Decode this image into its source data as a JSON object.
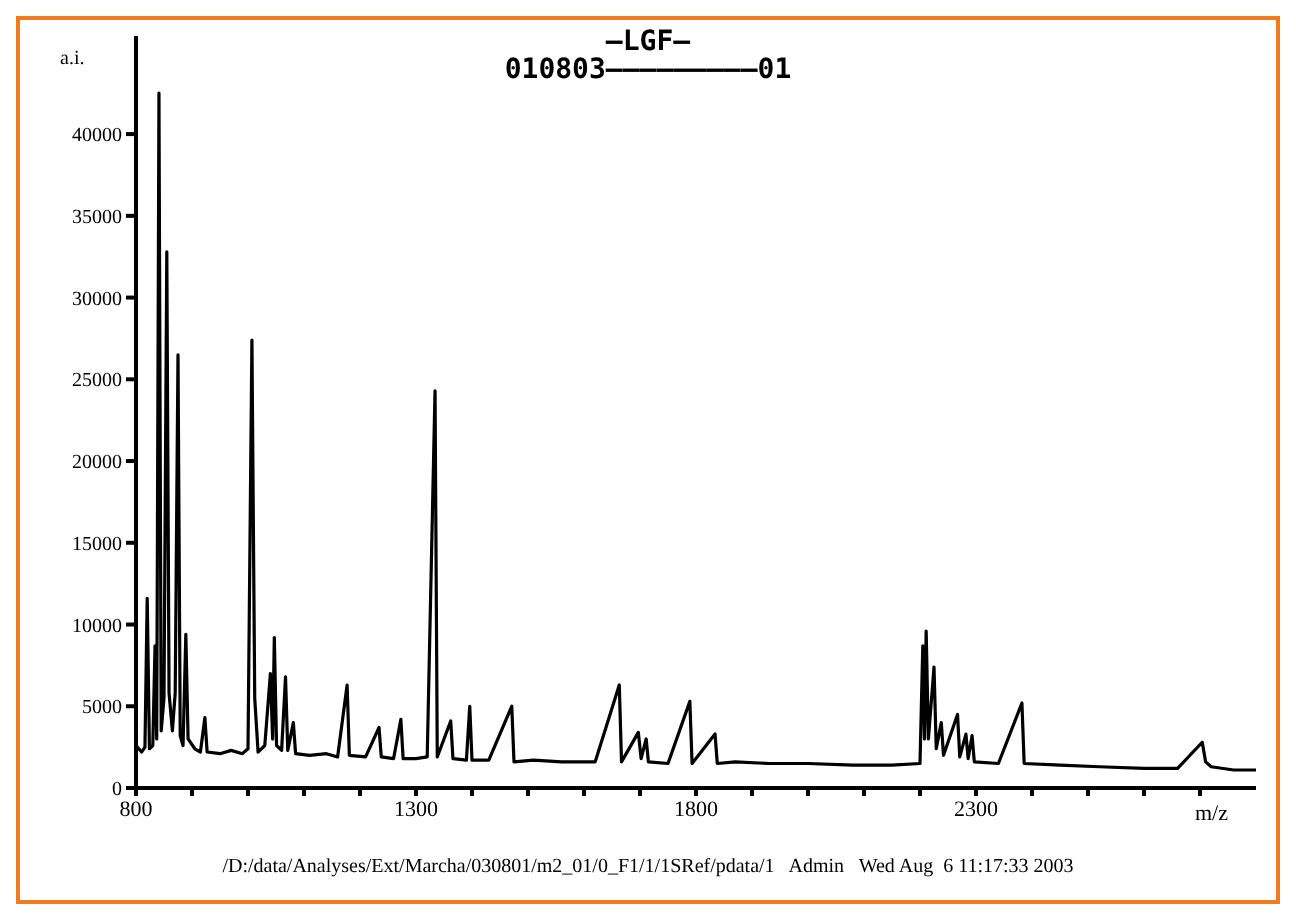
{
  "chart_data": {
    "type": "line",
    "title": "—LGF—",
    "subtitle": "010803—————————01",
    "xlabel": "m/z",
    "ylabel": "a.i.",
    "annotations": [
      "/D:/data/Analyses/Ext/Marcha/030801/m2_01/0_F1/1/1SRef/pdata/1   Admin   Wed Aug  6 11:17:33 2003"
    ],
    "xlim": [
      800,
      2800
    ],
    "xticks": [
      800,
      {
        "value": 900,
        "label": null
      },
      {
        "value": 1000,
        "label": null
      },
      {
        "value": 1100,
        "label": null
      },
      {
        "value": 1200,
        "label": null
      },
      1300,
      {
        "value": 1400,
        "label": null
      },
      {
        "value": 1500,
        "label": null
      },
      {
        "value": 1600,
        "label": null
      },
      {
        "value": 1700,
        "label": null
      },
      1800,
      {
        "value": 1900,
        "label": null
      },
      {
        "value": 2000,
        "label": null
      },
      {
        "value": 2100,
        "label": null
      },
      {
        "value": 2200,
        "label": null
      },
      2300,
      {
        "value": 2400,
        "label": null
      },
      {
        "value": 2500,
        "label": null
      },
      {
        "value": 2600,
        "label": null
      },
      {
        "value": 2700,
        "label": null
      }
    ],
    "ylim": [
      0,
      46000
    ],
    "yticks": [
      0,
      5000,
      10000,
      15000,
      20000,
      25000,
      30000,
      35000,
      40000
    ],
    "grid": false,
    "legend": false,
    "marker": "none",
    "line_style": "solid",
    "x": [
      800,
      810,
      816,
      820,
      824,
      830,
      834,
      837,
      841,
      845,
      850,
      855,
      859,
      865,
      870,
      875,
      879,
      884,
      889,
      893,
      905,
      915,
      923,
      927,
      950,
      970,
      990,
      1000,
      1007,
      1012,
      1018,
      1030,
      1040,
      1044,
      1047,
      1051,
      1060,
      1067,
      1071,
      1081,
      1085,
      1110,
      1140,
      1160,
      1177,
      1181,
      1210,
      1234,
      1238,
      1260,
      1273,
      1277,
      1300,
      1320,
      1334,
      1338,
      1362,
      1366,
      1390,
      1396,
      1400,
      1430,
      1471,
      1475,
      1510,
      1560,
      1620,
      1663,
      1667,
      1697,
      1702,
      1711,
      1715,
      1750,
      1789,
      1793,
      1834,
      1838,
      1870,
      1930,
      2000,
      2080,
      2150,
      2200,
      2205,
      2208,
      2211,
      2215,
      2225,
      2229,
      2238,
      2242,
      2267,
      2271,
      2282,
      2286,
      2293,
      2297,
      2340,
      2382,
      2386,
      2450,
      2520,
      2600,
      2660,
      2704,
      2710,
      2720,
      2760,
      2800
    ],
    "series": [
      {
        "color": "#000000",
        "values": [
          2600,
          2200,
          2500,
          11600,
          2400,
          2600,
          8700,
          3000,
          42500,
          3500,
          5500,
          32800,
          5800,
          3500,
          5800,
          26500,
          3200,
          2600,
          9400,
          3000,
          2400,
          2200,
          4300,
          2200,
          2100,
          2300,
          2100,
          2400,
          27400,
          5500,
          2200,
          2600,
          7000,
          3000,
          9200,
          2600,
          2300,
          6800,
          2300,
          4000,
          2100,
          2000,
          2100,
          1900,
          6300,
          2000,
          1900,
          3700,
          1900,
          1800,
          4200,
          1800,
          1800,
          1900,
          24300,
          1900,
          4100,
          1800,
          1700,
          5000,
          1700,
          1700,
          5000,
          1600,
          1700,
          1600,
          1600,
          6300,
          1600,
          3400,
          1800,
          3000,
          1600,
          1500,
          5300,
          1500,
          3300,
          1500,
          1600,
          1500,
          1500,
          1400,
          1400,
          1500,
          8700,
          3000,
          9600,
          3000,
          7400,
          2400,
          4000,
          2000,
          4500,
          1900,
          3300,
          1800,
          3200,
          1600,
          1500,
          5200,
          1500,
          1400,
          1300,
          1200,
          1200,
          2800,
          1600,
          1300,
          1100,
          1100
        ]
      }
    ]
  }
}
